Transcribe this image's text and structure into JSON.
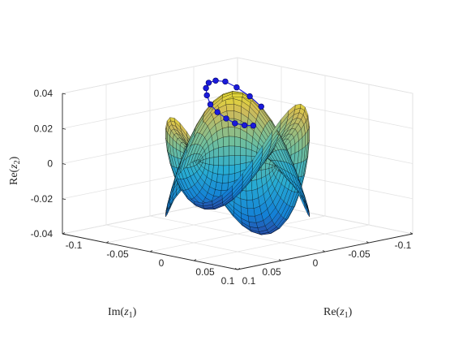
{
  "chart_data": {
    "type": "surface3d",
    "colormap": "parula",
    "grid": true,
    "xlabel": "Re(z1)",
    "ylabel": "Im(z1)",
    "zlabel": "Re(z2)",
    "xlim": [
      -0.1,
      0.1
    ],
    "ylim": [
      -0.1,
      0.1
    ],
    "zlim": [
      -0.04,
      0.04
    ],
    "xticks": [
      "-0.1",
      "-0.05",
      "0",
      "0.05",
      "0.1"
    ],
    "yticks": [
      "-0.1",
      "-0.05",
      "0",
      "0.05",
      "0.1"
    ],
    "zticks": [
      "-0.04",
      "-0.02",
      "0",
      "0.02",
      "0.04"
    ],
    "series": [
      {
        "marker_color": "#1a1adb",
        "points": [
          {
            "x": -0.028,
            "y": -0.055,
            "z": 0.024
          },
          {
            "x": -0.034,
            "y": -0.048,
            "z": 0.03
          },
          {
            "x": -0.042,
            "y": -0.041,
            "z": 0.035
          },
          {
            "x": -0.05,
            "y": -0.036,
            "z": 0.038
          },
          {
            "x": -0.058,
            "y": -0.033,
            "z": 0.038
          },
          {
            "x": -0.066,
            "y": -0.033,
            "z": 0.036
          },
          {
            "x": -0.072,
            "y": -0.036,
            "z": 0.032
          },
          {
            "x": -0.076,
            "y": -0.041,
            "z": 0.027
          },
          {
            "x": -0.078,
            "y": -0.047,
            "z": 0.021
          },
          {
            "x": -0.077,
            "y": -0.054,
            "z": 0.016
          },
          {
            "x": -0.074,
            "y": -0.061,
            "z": 0.012
          },
          {
            "x": -0.07,
            "y": -0.067,
            "z": 0.009
          },
          {
            "x": -0.064,
            "y": -0.072,
            "z": 0.008
          },
          {
            "x": -0.058,
            "y": -0.076,
            "z": 0.008
          }
        ]
      }
    ]
  }
}
